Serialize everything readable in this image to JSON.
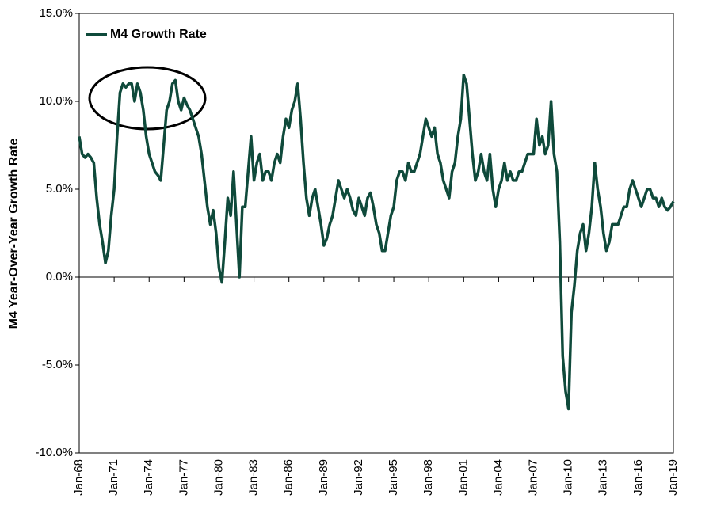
{
  "chart_data": {
    "type": "line",
    "y_axis_label": "M4 Year-Over-Year Growth Rate",
    "categories": [
      "Jan-68",
      null,
      null,
      null,
      null,
      null,
      null,
      null,
      null,
      null,
      null,
      null,
      "Jan-71",
      null,
      null,
      null,
      null,
      null,
      null,
      null,
      null,
      null,
      null,
      null,
      "Jan-74",
      null,
      null,
      null,
      null,
      null,
      null,
      null,
      null,
      null,
      null,
      null,
      "Jan-77",
      null,
      null,
      null,
      null,
      null,
      null,
      null,
      null,
      null,
      null,
      null,
      "Jan-80",
      null,
      null,
      null,
      null,
      null,
      null,
      null,
      null,
      null,
      null,
      null,
      "Jan-83",
      null,
      null,
      null,
      null,
      null,
      null,
      null,
      null,
      null,
      null,
      null,
      "Jan-86",
      null,
      null,
      null,
      null,
      null,
      null,
      null,
      null,
      null,
      null,
      null,
      "Jan-89",
      null,
      null,
      null,
      null,
      null,
      null,
      null,
      null,
      null,
      null,
      null,
      "Jan-92",
      null,
      null,
      null,
      null,
      null,
      null,
      null,
      null,
      null,
      null,
      null,
      "Jan-95",
      null,
      null,
      null,
      null,
      null,
      null,
      null,
      null,
      null,
      null,
      null,
      "Jan-98",
      null,
      null,
      null,
      null,
      null,
      null,
      null,
      null,
      null,
      null,
      null,
      "Jan-01",
      null,
      null,
      null,
      null,
      null,
      null,
      null,
      null,
      null,
      null,
      null,
      "Jan-04",
      null,
      null,
      null,
      null,
      null,
      null,
      null,
      null,
      null,
      null,
      null,
      "Jan-07",
      null,
      null,
      null,
      null,
      null,
      null,
      null,
      null,
      null,
      null,
      null,
      "Jan-10",
      null,
      null,
      null,
      null,
      null,
      null,
      null,
      null,
      null,
      null,
      null,
      "Jan-13",
      null,
      null,
      null,
      null,
      null,
      null,
      null,
      null,
      null,
      null,
      null,
      "Jan-16",
      null,
      null,
      null,
      null,
      null,
      null,
      null,
      null,
      null,
      null,
      null,
      "Jan-19"
    ],
    "series": [
      {
        "name": "M4 Growth Rate",
        "color": "#0f4a3b",
        "values": [
          8.0,
          7.0,
          6.8,
          7.0,
          6.8,
          6.5,
          4.5,
          3.0,
          2.0,
          0.8,
          1.5,
          3.5,
          5.0,
          8.0,
          10.5,
          11.0,
          10.8,
          11.0,
          11.0,
          10.0,
          11.0,
          10.5,
          9.5,
          8.0,
          7.0,
          6.5,
          6.0,
          5.8,
          5.5,
          7.5,
          9.5,
          10.0,
          11.0,
          11.2,
          10.0,
          9.5,
          10.2,
          9.8,
          9.5,
          9.0,
          8.5,
          8.0,
          7.0,
          5.5,
          4.0,
          3.0,
          3.8,
          2.5,
          0.5,
          -0.3,
          2.0,
          4.5,
          3.5,
          6.0,
          3.0,
          0.0,
          4.0,
          4.0,
          6.0,
          8.0,
          5.5,
          6.5,
          7.0,
          5.5,
          6.0,
          6.0,
          5.5,
          6.5,
          7.0,
          6.5,
          8.0,
          9.0,
          8.5,
          9.5,
          10.0,
          11.0,
          9.0,
          6.5,
          4.5,
          3.5,
          4.5,
          5.0,
          4.0,
          3.0,
          1.8,
          2.2,
          3.0,
          3.5,
          4.5,
          5.5,
          5.0,
          4.5,
          5.0,
          4.5,
          3.8,
          3.5,
          4.5,
          4.0,
          3.5,
          4.5,
          4.8,
          4.0,
          3.0,
          2.5,
          1.5,
          1.5,
          2.5,
          3.5,
          4.0,
          5.5,
          6.0,
          6.0,
          5.5,
          6.5,
          6.0,
          6.0,
          6.5,
          7.0,
          8.0,
          9.0,
          8.5,
          8.0,
          8.5,
          7.0,
          6.5,
          5.5,
          5.0,
          4.5,
          6.0,
          6.5,
          8.0,
          9.0,
          11.5,
          11.0,
          9.0,
          7.0,
          5.5,
          6.0,
          7.0,
          6.0,
          5.5,
          7.0,
          5.0,
          4.0,
          5.0,
          5.5,
          6.5,
          5.5,
          6.0,
          5.5,
          5.5,
          6.0,
          6.0,
          6.5,
          7.0,
          7.0,
          7.0,
          9.0,
          7.5,
          8.0,
          7.0,
          7.5,
          10.0,
          7.0,
          6.0,
          2.0,
          -4.5,
          -6.5,
          -7.5,
          -2.0,
          -0.5,
          1.5,
          2.5,
          3.0,
          1.5,
          2.5,
          4.0,
          6.5,
          5.0,
          4.0,
          2.5,
          1.5,
          2.0,
          3.0,
          3.0,
          3.0,
          3.5,
          4.0,
          4.0,
          5.0,
          5.5,
          5.0,
          4.5,
          4.0,
          4.5,
          5.0,
          5.0,
          4.5,
          4.5,
          4.0,
          4.5,
          4.0,
          3.8,
          4.0,
          4.3
        ]
      }
    ],
    "ylim": [
      -10,
      15
    ],
    "yticks": [
      {
        "value": -10,
        "label": "-10.0%"
      },
      {
        "value": -5,
        "label": "-5.0%"
      },
      {
        "value": 0,
        "label": "0.0%"
      },
      {
        "value": 5,
        "label": "5.0%"
      },
      {
        "value": 10,
        "label": "10.0%"
      },
      {
        "value": 15,
        "label": "15.0%"
      }
    ],
    "grid": false,
    "legend": "upper left"
  }
}
